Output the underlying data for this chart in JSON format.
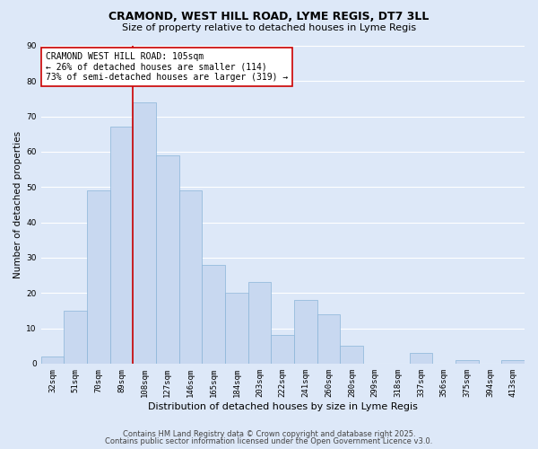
{
  "title": "CRAMOND, WEST HILL ROAD, LYME REGIS, DT7 3LL",
  "subtitle": "Size of property relative to detached houses in Lyme Regis",
  "xlabel": "Distribution of detached houses by size in Lyme Regis",
  "ylabel": "Number of detached properties",
  "bin_labels": [
    "32sqm",
    "51sqm",
    "70sqm",
    "89sqm",
    "108sqm",
    "127sqm",
    "146sqm",
    "165sqm",
    "184sqm",
    "203sqm",
    "222sqm",
    "241sqm",
    "260sqm",
    "280sqm",
    "299sqm",
    "318sqm",
    "337sqm",
    "356sqm",
    "375sqm",
    "394sqm",
    "413sqm"
  ],
  "bar_heights": [
    2,
    15,
    49,
    67,
    74,
    59,
    49,
    28,
    20,
    23,
    8,
    18,
    14,
    5,
    0,
    0,
    3,
    0,
    1,
    0,
    1
  ],
  "bar_color": "#c8d8f0",
  "bar_edge_color": "#8ab4d8",
  "ylim": [
    0,
    90
  ],
  "yticks": [
    0,
    10,
    20,
    30,
    40,
    50,
    60,
    70,
    80,
    90
  ],
  "vline_x_idx": 4,
  "vline_color": "#cc0000",
  "annotation_title": "CRAMOND WEST HILL ROAD: 105sqm",
  "annotation_line1": "← 26% of detached houses are smaller (114)",
  "annotation_line2": "73% of semi-detached houses are larger (319) →",
  "annotation_box_facecolor": "#ffffff",
  "annotation_box_edgecolor": "#cc0000",
  "footer1": "Contains HM Land Registry data © Crown copyright and database right 2025.",
  "footer2": "Contains public sector information licensed under the Open Government Licence v3.0.",
  "background_color": "#dde8f8",
  "plot_background": "#dde8f8",
  "grid_color": "#ffffff",
  "title_fontsize": 9,
  "subtitle_fontsize": 8,
  "xlabel_fontsize": 8,
  "ylabel_fontsize": 7.5,
  "tick_fontsize": 6.5,
  "annotation_fontsize": 7,
  "footer_fontsize": 6
}
